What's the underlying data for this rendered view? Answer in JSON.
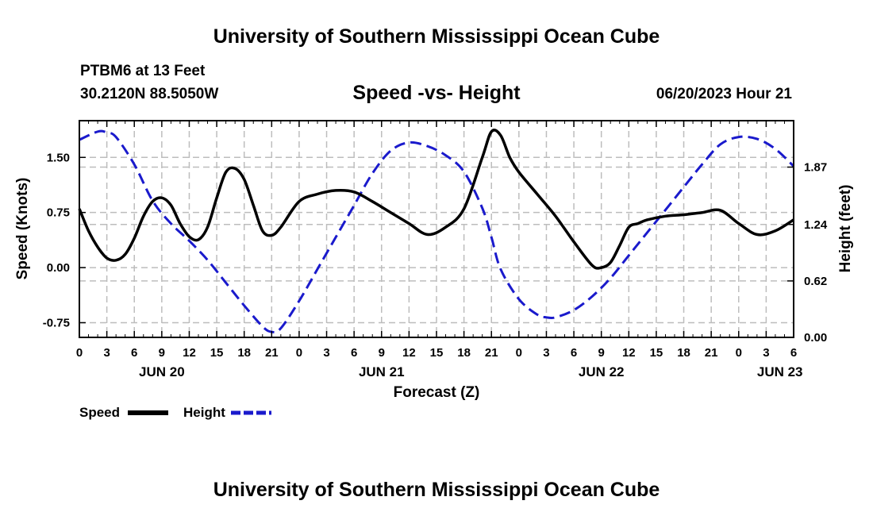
{
  "header": {
    "title": "University of Southern Mississippi Ocean Cube",
    "station": "PTBM6 at 13 Feet",
    "location": "30.2120N  88.5050W",
    "subtitle": "Speed -vs- Height",
    "datetime": "06/20/2023 Hour 21"
  },
  "footer": {
    "title": "University of Southern Mississippi Ocean Cube"
  },
  "chart_data": {
    "type": "line",
    "title": "Speed -vs- Height",
    "xlabel": "Forecast (Z)",
    "ylabel_left": "Speed (Knots)",
    "ylabel_right": "Height (feet)",
    "xlim": [
      0,
      78
    ],
    "ylim_left": [
      -0.95,
      2.0
    ],
    "ylim_right": [
      0.0,
      2.38
    ],
    "x_ticks": [
      0,
      3,
      6,
      9,
      12,
      15,
      18,
      21,
      24,
      27,
      30,
      33,
      36,
      39,
      42,
      45,
      48,
      51,
      54,
      57,
      60,
      63,
      66,
      69,
      72,
      75,
      78
    ],
    "x_tick_labels": [
      "0",
      "3",
      "6",
      "9",
      "12",
      "15",
      "18",
      "21",
      "0",
      "3",
      "6",
      "9",
      "12",
      "15",
      "18",
      "21",
      "0",
      "3",
      "6",
      "9",
      "12",
      "15",
      "18",
      "21",
      "0",
      "3",
      "6"
    ],
    "day_labels": [
      {
        "x": 9,
        "label": "JUN 20"
      },
      {
        "x": 33,
        "label": "JUN 21"
      },
      {
        "x": 57,
        "label": "JUN 22"
      },
      {
        "x": 76.5,
        "label": "JUN 23"
      }
    ],
    "y_left_ticks": [
      -0.75,
      0.0,
      0.75,
      1.5
    ],
    "y_left_tick_labels": [
      "-0.75",
      "0.00",
      "0.75",
      "1.50"
    ],
    "y_right_ticks": [
      0.0,
      0.62,
      1.24,
      1.87
    ],
    "y_right_tick_labels": [
      "0.00",
      "0.62",
      "1.24",
      "1.87"
    ],
    "grid": true,
    "series": [
      {
        "name": "Speed",
        "axis": "left",
        "color": "#000000",
        "style": "solid",
        "x": [
          0,
          1,
          2,
          3,
          4,
          5,
          6,
          7,
          8,
          9,
          10,
          11,
          12,
          13,
          14,
          15,
          16,
          17,
          18,
          19,
          20,
          21,
          22,
          24,
          26,
          28,
          30,
          32,
          34,
          36,
          38,
          40,
          42,
          44,
          45,
          46,
          47,
          48,
          50,
          52,
          54,
          56,
          57,
          58,
          59,
          60,
          61,
          62,
          64,
          66,
          68,
          70,
          72,
          74,
          76,
          78
        ],
        "y": [
          0.8,
          0.5,
          0.28,
          0.13,
          0.1,
          0.18,
          0.4,
          0.7,
          0.9,
          0.95,
          0.85,
          0.6,
          0.42,
          0.38,
          0.55,
          0.95,
          1.3,
          1.35,
          1.2,
          0.85,
          0.5,
          0.44,
          0.55,
          0.9,
          1.0,
          1.05,
          1.03,
          0.9,
          0.75,
          0.6,
          0.45,
          0.55,
          0.8,
          1.5,
          1.85,
          1.8,
          1.5,
          1.3,
          1.0,
          0.7,
          0.35,
          0.03,
          0.0,
          0.07,
          0.3,
          0.55,
          0.6,
          0.65,
          0.7,
          0.72,
          0.75,
          0.78,
          0.6,
          0.45,
          0.5,
          0.65
        ]
      },
      {
        "name": "Height",
        "axis": "right",
        "color": "#1a1acc",
        "style": "dashed",
        "x": [
          0,
          2,
          3,
          4,
          6,
          8,
          10,
          12,
          14,
          16,
          18,
          20,
          21,
          22,
          24,
          26,
          28,
          30,
          32,
          34,
          36,
          38,
          40,
          42,
          44,
          45,
          46,
          48,
          50,
          51,
          52,
          54,
          56,
          58,
          60,
          62,
          64,
          66,
          68,
          70,
          72,
          74,
          76,
          78
        ],
        "y": [
          2.17,
          2.26,
          2.25,
          2.2,
          1.9,
          1.5,
          1.25,
          1.06,
          0.85,
          0.6,
          0.35,
          0.12,
          0.06,
          0.1,
          0.4,
          0.75,
          1.1,
          1.45,
          1.8,
          2.05,
          2.14,
          2.1,
          2.0,
          1.82,
          1.42,
          1.1,
          0.75,
          0.42,
          0.25,
          0.22,
          0.22,
          0.3,
          0.45,
          0.65,
          0.9,
          1.15,
          1.4,
          1.65,
          1.9,
          2.12,
          2.2,
          2.18,
          2.07,
          1.88
        ]
      }
    ],
    "legend": {
      "position": "bottom-left",
      "entries": [
        {
          "label": "Speed",
          "color": "#000000",
          "style": "solid"
        },
        {
          "label": "Height",
          "color": "#1a1acc",
          "style": "dashed"
        }
      ]
    }
  }
}
